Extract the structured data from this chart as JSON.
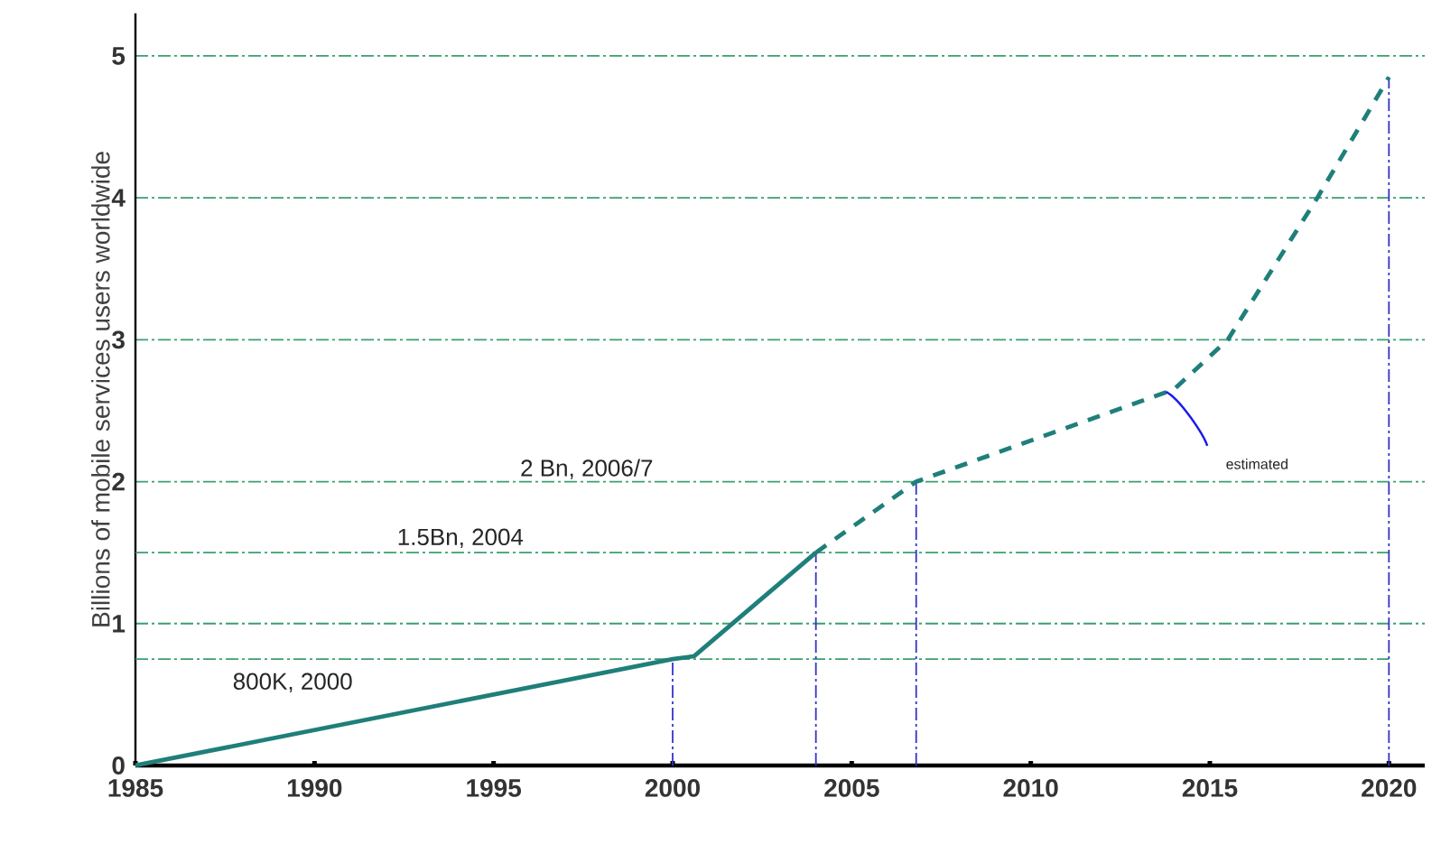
{
  "chart_data": {
    "type": "line",
    "ylabel": "Billions of mobile services users worldwide",
    "series": [
      {
        "color": "#1f7f7a",
        "line_style": "solid",
        "x": [
          1985,
          2000,
          2000.6,
          2004
        ],
        "values": [
          0,
          0.75,
          0.77,
          1.5
        ]
      },
      {
        "color": "#1f7f7a",
        "line_style": "dashed",
        "x": [
          2004,
          2006.8,
          2014,
          2015.5,
          2018,
          2020
        ],
        "values": [
          1.5,
          2.0,
          2.65,
          3.0,
          4.0,
          4.85
        ]
      }
    ],
    "xlim": [
      1985,
      2021
    ],
    "ylim": [
      0,
      5.3
    ],
    "xticks": [
      1985,
      1990,
      1995,
      2000,
      2005,
      2010,
      2015,
      2020
    ],
    "yticks": [
      0,
      1,
      2,
      3,
      4,
      5
    ],
    "grid": "y",
    "marker": "none",
    "ref_lines": [
      {
        "axis": "y",
        "value": 0.75,
        "color": "#3aa070",
        "line_style": "dashdot"
      },
      {
        "axis": "y",
        "value": 1.5,
        "color": "#3aa070",
        "line_style": "dashdot"
      },
      {
        "axis": "x",
        "value": 2000,
        "color": "#3333cc",
        "line_style": "dashdot"
      },
      {
        "axis": "x",
        "value": 2004,
        "color": "#3333cc",
        "line_style": "dashdot"
      },
      {
        "axis": "x",
        "value": 2006.8,
        "color": "#3333cc",
        "line_style": "dashdot"
      },
      {
        "axis": "x",
        "value": 2020,
        "color": "#3333cc",
        "line_style": "dashdot"
      }
    ],
    "annotations": [
      "800K, 2000",
      "1.5Bn, 2004",
      "2 Bn, 2006/7",
      "estimated"
    ]
  }
}
